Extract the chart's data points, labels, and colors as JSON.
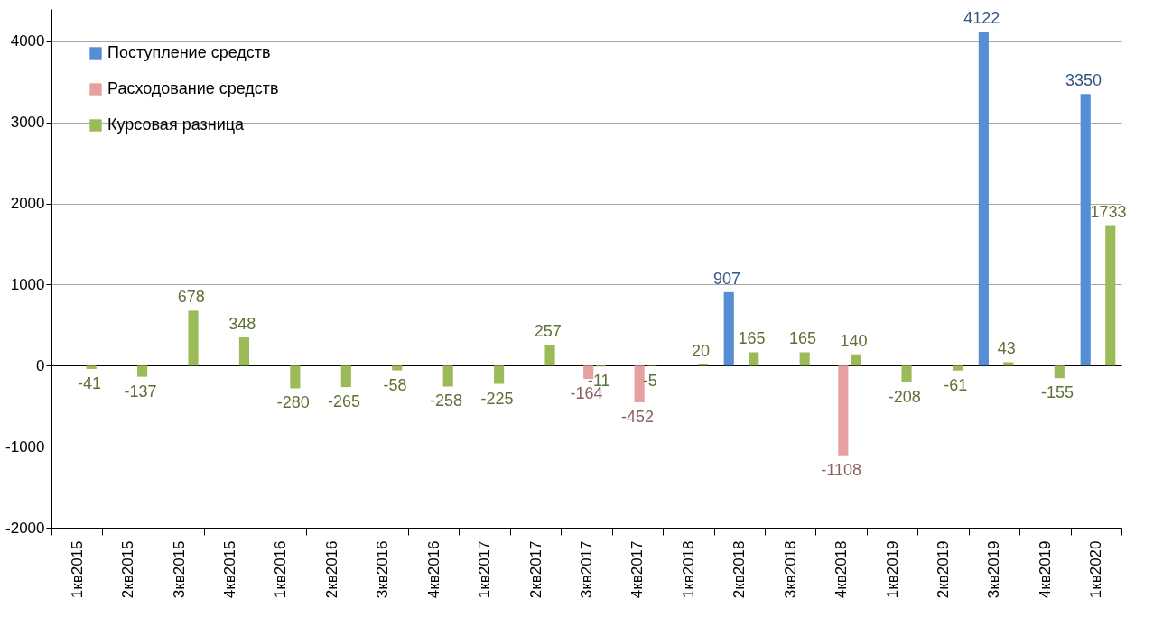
{
  "chart_data": {
    "type": "bar",
    "categories": [
      "1кв2015",
      "2кв2015",
      "3кв2015",
      "4кв2015",
      "1кв2016",
      "2кв2016",
      "3кв2016",
      "4кв2016",
      "1кв2017",
      "2кв2017",
      "3кв2017",
      "4кв2017",
      "1кв2018",
      "2кв2018",
      "3кв2018",
      "4кв2018",
      "1кв2019",
      "2кв2019",
      "3кв2019",
      "4кв2019",
      "1кв2020"
    ],
    "series": [
      {
        "name": "Поступление средств",
        "color": "#558ed5",
        "values": [
          null,
          null,
          null,
          null,
          null,
          null,
          null,
          null,
          null,
          null,
          null,
          null,
          null,
          907,
          null,
          null,
          null,
          null,
          4122,
          null,
          3350
        ]
      },
      {
        "name": "Расходование средств",
        "color": "#e6a0a0",
        "values": [
          null,
          null,
          null,
          null,
          null,
          null,
          null,
          null,
          null,
          null,
          -164,
          -452,
          null,
          null,
          null,
          -1108,
          null,
          null,
          null,
          null,
          null
        ]
      },
      {
        "name": "Курсовая разница",
        "color": "#9bbb59",
        "values": [
          -41,
          -137,
          678,
          348,
          -280,
          -265,
          -58,
          -258,
          -225,
          257,
          -11,
          -5,
          20,
          165,
          165,
          140,
          -208,
          -61,
          43,
          -155,
          1733
        ]
      }
    ],
    "ylim": [
      -2000,
      4400
    ],
    "yticks": [
      -2000,
      -1000,
      0,
      1000,
      2000,
      3000,
      4000
    ],
    "grid": "y",
    "legend": "top left",
    "data_labels": true
  }
}
